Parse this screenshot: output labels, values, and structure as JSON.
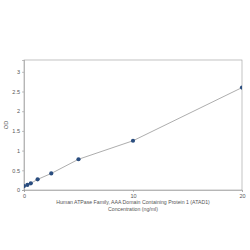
{
  "chart_data": {
    "type": "line",
    "title": "Human ATPase Family, AAA Domain Containing Protein 1 (ATAD1)",
    "x_label": "Concentration (ng/ml)",
    "y_label": "OD",
    "x": [
      0,
      0.3125,
      0.625,
      1.25,
      2.5,
      5,
      10,
      20
    ],
    "values": [
      0.1,
      0.13,
      0.17,
      0.27,
      0.42,
      0.78,
      1.25,
      2.6
    ],
    "color": "#2a4d7f",
    "marker": "circle",
    "xlim": [
      0,
      20
    ],
    "xticks": [
      0,
      10,
      20
    ],
    "ylim": [
      0,
      3.3
    ],
    "yticks": [
      0,
      0.5,
      1,
      1.5,
      2,
      2.5,
      3
    ],
    "grid": false
  }
}
